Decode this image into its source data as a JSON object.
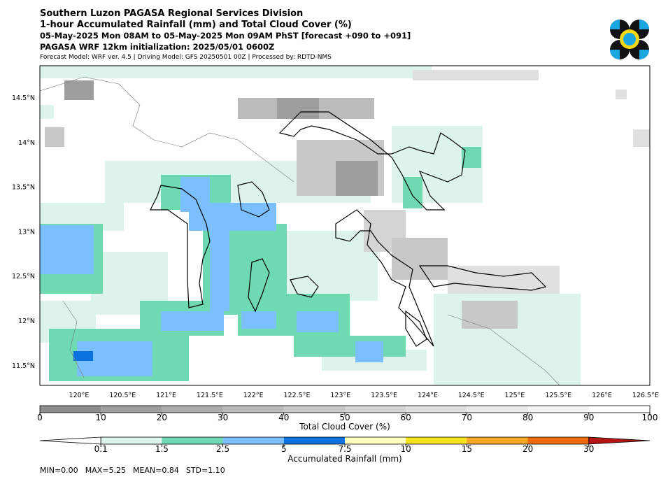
{
  "header": {
    "title": "Southern Luzon PAGASA Regional Services Division",
    "subtitle": "1-hour Accumulated Rainfall (mm) and Total Cloud Cover (%)",
    "period": "05-May-2025 Mon 08AM to 05-May-2025 Mon 09AM PhST [forecast +090 to +091]",
    "init": "PAGASA WRF 12km initialization: 2025/05/01 0600Z",
    "model": "Forecast Model: WRF ver. 4.5 | Driving Model: GFS 20250501 00Z | Processed by: RDTD-NMS"
  },
  "map": {
    "lat_labels": [
      "14.5°N",
      "14°N",
      "13.5°N",
      "13°N",
      "12.5°N",
      "12°N",
      "11.5°N"
    ],
    "lon_labels": [
      "120°E",
      "120.5°E",
      "121°E",
      "121.5°E",
      "122°E",
      "122.5°E",
      "123°E",
      "123.5°E",
      "124°E",
      "124.5°E",
      "125°E",
      "125.5°E",
      "126°E",
      "126.5°E"
    ]
  },
  "cloud_colorbar": {
    "label": "Total Cloud Cover (%)",
    "ticks": [
      0,
      10,
      20,
      30,
      40,
      50,
      60,
      70,
      80,
      90,
      100
    ],
    "colors": [
      "#8c8c8c",
      "#9e9e9e",
      "#adadad",
      "#bbbbbb",
      "#c8c8c8",
      "#d4d4d4",
      "#e0e0e0",
      "#ebebeb",
      "#f5f5f5",
      "#ffffff"
    ]
  },
  "rain_colorbar": {
    "label": "Accumulated Rainfall (mm)",
    "ticks": [
      0.1,
      1.5,
      2.5,
      5,
      7.5,
      10,
      15,
      20,
      30
    ],
    "colors": [
      "#ffffff",
      "#dcf4ec",
      "#6fd9b2",
      "#7cbfff",
      "#0a73e0",
      "#ffffc0",
      "#f5e21a",
      "#f5a623",
      "#f06a0a",
      "#b41414"
    ]
  },
  "stats": [
    "MIN=0.00",
    "MAX=5.25",
    "MEAN=0.84",
    "STD=1.10"
  ]
}
